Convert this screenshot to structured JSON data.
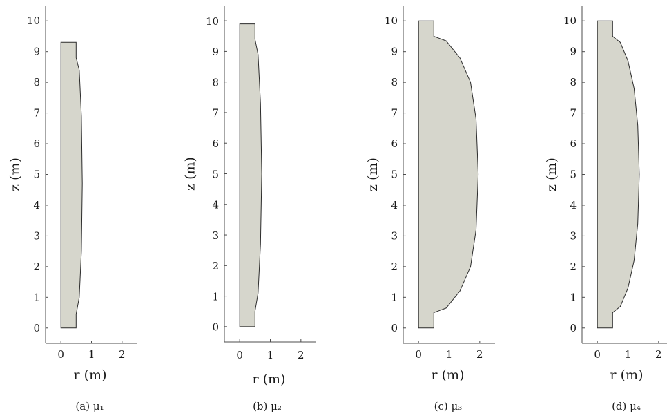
{
  "chart_data": [
    {
      "type": "area",
      "caption": "(a) μ₁",
      "xlabel": "r (m)",
      "ylabel": "z (m)",
      "xlim": [
        -0.5,
        2.5
      ],
      "ylim": [
        -0.5,
        10.5
      ],
      "xticks": [
        0,
        1,
        2
      ],
      "yticks": [
        0,
        1,
        2,
        3,
        4,
        5,
        6,
        7,
        8,
        9,
        10
      ],
      "fill_color": "#d6d6cc",
      "outline": {
        "r": [
          0,
          0.5,
          0.5,
          0.6,
          0.67,
          0.7,
          0.67,
          0.6,
          0.5,
          0.5,
          0,
          0
        ],
        "z": [
          0,
          0,
          0.45,
          1.0,
          2.5,
          4.7,
          6.9,
          8.4,
          8.8,
          9.3,
          9.3,
          0
        ]
      }
    },
    {
      "type": "area",
      "caption": "(b) μ₂",
      "xlabel": "r (m)",
      "ylabel": "z (m)",
      "xlim": [
        -0.5,
        2.5
      ],
      "ylim": [
        -0.5,
        10.5
      ],
      "xticks": [
        0,
        1,
        2
      ],
      "yticks": [
        0,
        1,
        2,
        3,
        4,
        5,
        6,
        7,
        8,
        9,
        10
      ],
      "fill_color": "#d6d6cc",
      "outline": {
        "r": [
          0,
          0.5,
          0.5,
          0.6,
          0.68,
          0.72,
          0.68,
          0.6,
          0.5,
          0.5,
          0,
          0
        ],
        "z": [
          0,
          0,
          0.5,
          1.1,
          2.7,
          5.0,
          7.3,
          8.9,
          9.4,
          9.9,
          9.9,
          0
        ]
      }
    },
    {
      "type": "area",
      "caption": "(c) μ₃",
      "xlabel": "r (m)",
      "ylabel": "z (m)",
      "xlim": [
        -0.5,
        2.5
      ],
      "ylim": [
        -0.5,
        10.5
      ],
      "xticks": [
        0,
        1,
        2
      ],
      "yticks": [
        0,
        1,
        2,
        3,
        4,
        5,
        6,
        7,
        8,
        9,
        10
      ],
      "fill_color": "#d6d6cc",
      "outline": {
        "r": [
          0,
          0.5,
          0.5,
          0.9,
          1.35,
          1.7,
          1.88,
          1.95,
          1.88,
          1.7,
          1.35,
          0.9,
          0.5,
          0.5,
          0,
          0
        ],
        "z": [
          0,
          0,
          0.5,
          0.65,
          1.2,
          2.0,
          3.2,
          5.0,
          6.8,
          8.0,
          8.8,
          9.35,
          9.5,
          10.0,
          10.0,
          0
        ]
      }
    },
    {
      "type": "area",
      "caption": "(d) μ₄",
      "xlabel": "r (m)",
      "ylabel": "z (m)",
      "xlim": [
        -0.5,
        2.5
      ],
      "ylim": [
        -0.5,
        10.5
      ],
      "xticks": [
        0,
        1,
        2
      ],
      "yticks": [
        0,
        1,
        2,
        3,
        4,
        5,
        6,
        7,
        8,
        9,
        10
      ],
      "fill_color": "#d6d6cc",
      "outline": {
        "r": [
          0,
          0.5,
          0.5,
          0.75,
          1.0,
          1.2,
          1.32,
          1.37,
          1.32,
          1.2,
          1.0,
          0.75,
          0.5,
          0.5,
          0,
          0
        ],
        "z": [
          0,
          0,
          0.5,
          0.7,
          1.3,
          2.2,
          3.4,
          5.0,
          6.6,
          7.8,
          8.7,
          9.3,
          9.5,
          10.0,
          10.0,
          0
        ]
      }
    }
  ]
}
